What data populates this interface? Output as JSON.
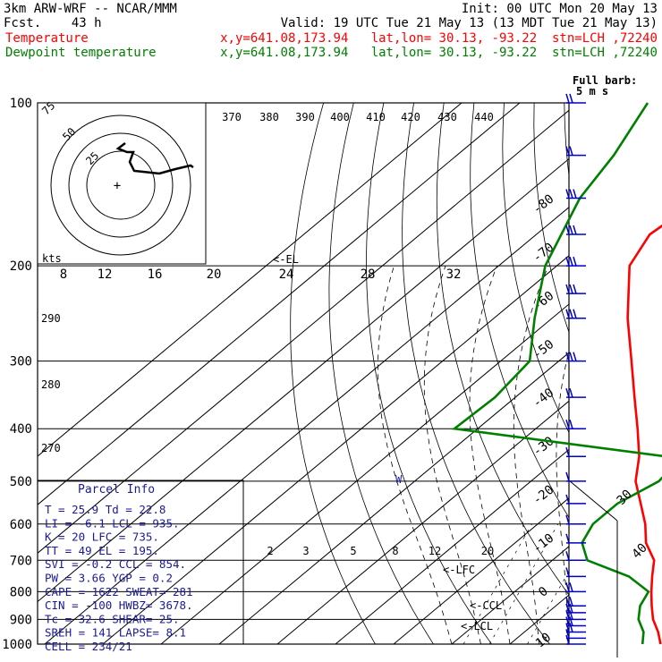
{
  "header": {
    "line1_left": "3km ARW-WRF -- NCAR/MMM",
    "line1_right": "Init: 00 UTC Mon 20 May 13",
    "line2_left": "Fcst.    43 h",
    "line2_right": "Valid: 19 UTC Tue 21 May 13 (13 MDT Tue 21 May 13)",
    "line3_left": "Temperature",
    "line3_right": "x,y=641.08,173.94   lat,lon= 30.13, -93.22  stn=LCH ,72240",
    "line4_left": "Dewpoint temperature",
    "line4_right": "x,y=641.08,173.94   lat,lon= 30.13, -93.22  stn=LCH ,72240"
  },
  "colors": {
    "temperature": "#ff0000",
    "dewpoint": "#008000",
    "wind_barbs": "#0000cc",
    "grid": "#000000"
  },
  "barb_legend": {
    "line1": "Full barb:",
    "line2": "5 m s"
  },
  "hodograph": {
    "units": "kts",
    "ring_labels": [
      "75",
      "50",
      "25"
    ],
    "speed_ticks": [
      "8",
      "12",
      "16",
      "20",
      "24",
      "28",
      "32"
    ]
  },
  "labels": {
    "el": "<-EL",
    "lfc": "<-LFC",
    "ccl": "<-CCL",
    "lcl": "<-LCL",
    "wet_bulb_zero": "W"
  },
  "isentrope_labels": [
    "370",
    "380",
    "390",
    "400",
    "410",
    "420",
    "430",
    "440"
  ],
  "theta_labels": [
    "290",
    "280",
    "270"
  ],
  "mixing_ratio_labels": [
    "2",
    "3",
    "5",
    "8",
    "12",
    "20"
  ],
  "wind_speed_ticks": [
    "30",
    "40"
  ],
  "parcel_info": {
    "title": "Parcel Info",
    "rows": [
      "T  =   25.9  Td =  22.8",
      "LI =   -6.1  LCL =  935.",
      "K  =     20  LFC =  735.",
      "TT =     49  EL  =  195.",
      "SVI =  -0.2  CCL =  854.",
      "PW =   3.66  YGP =   0.2",
      "CAPE =  1622  SWEAT=  281",
      "CIN =   -100  HWBZ= 3678.",
      "Tc =   32.6  SHEAR=  25.",
      "SREH =   141  LAPSE=  8.1",
      "CELL = 234/21"
    ]
  },
  "chart_data": {
    "type": "line",
    "title": "",
    "xlabel": "",
    "ylabel": "",
    "y_scale": "log-pressure",
    "pressure_levels": [
      100,
      200,
      300,
      400,
      500,
      600,
      700,
      800,
      900,
      1000
    ],
    "temperature_ticks": [
      -80,
      -70,
      -60,
      -50,
      -40,
      -30,
      -20,
      -10,
      0,
      10
    ],
    "ylim": [
      1000,
      100
    ],
    "series": [
      {
        "name": "Temperature",
        "pressure": [
          1000,
          950,
          900,
          850,
          800,
          750,
          700,
          650,
          600,
          550,
          500,
          450,
          400,
          350,
          300,
          250,
          200,
          175,
          150,
          125,
          100
        ],
        "values": [
          25.9,
          23.0,
          19.5,
          16.5,
          13.5,
          10.5,
          7.5,
          2.5,
          -1.5,
          -6.5,
          -12.0,
          -16.5,
          -22.5,
          -29.5,
          -37.5,
          -47.0,
          -57.5,
          -60.5,
          -59.0,
          -56.0,
          -53.0
        ]
      },
      {
        "name": "Dewpoint temperature",
        "pressure": [
          1000,
          950,
          900,
          850,
          800,
          750,
          700,
          650,
          600,
          550,
          500,
          475,
          450,
          400,
          350,
          300,
          250,
          200,
          150,
          125,
          100
        ],
        "values": [
          22.8,
          20.5,
          17.0,
          14.5,
          13.0,
          6.5,
          -4.0,
          -8.5,
          -10.5,
          -10.5,
          -8.0,
          -8.5,
          -12.0,
          -54.0,
          -53.5,
          -55.0,
          -63.0,
          -72.0,
          -80.0,
          -83.0,
          -88.0
        ]
      }
    ],
    "winds": {
      "pressure": [
        1000,
        975,
        950,
        925,
        900,
        875,
        850,
        800,
        750,
        700,
        650,
        600,
        550,
        500,
        450,
        400,
        350,
        300,
        250,
        225,
        200,
        175,
        150,
        125,
        100
      ],
      "speed_ms": [
        5,
        7,
        9,
        10,
        10,
        10,
        9,
        8,
        7,
        6,
        6,
        5,
        5,
        6,
        7,
        9,
        11,
        13,
        14,
        15,
        16,
        17,
        15,
        12,
        10
      ]
    }
  }
}
